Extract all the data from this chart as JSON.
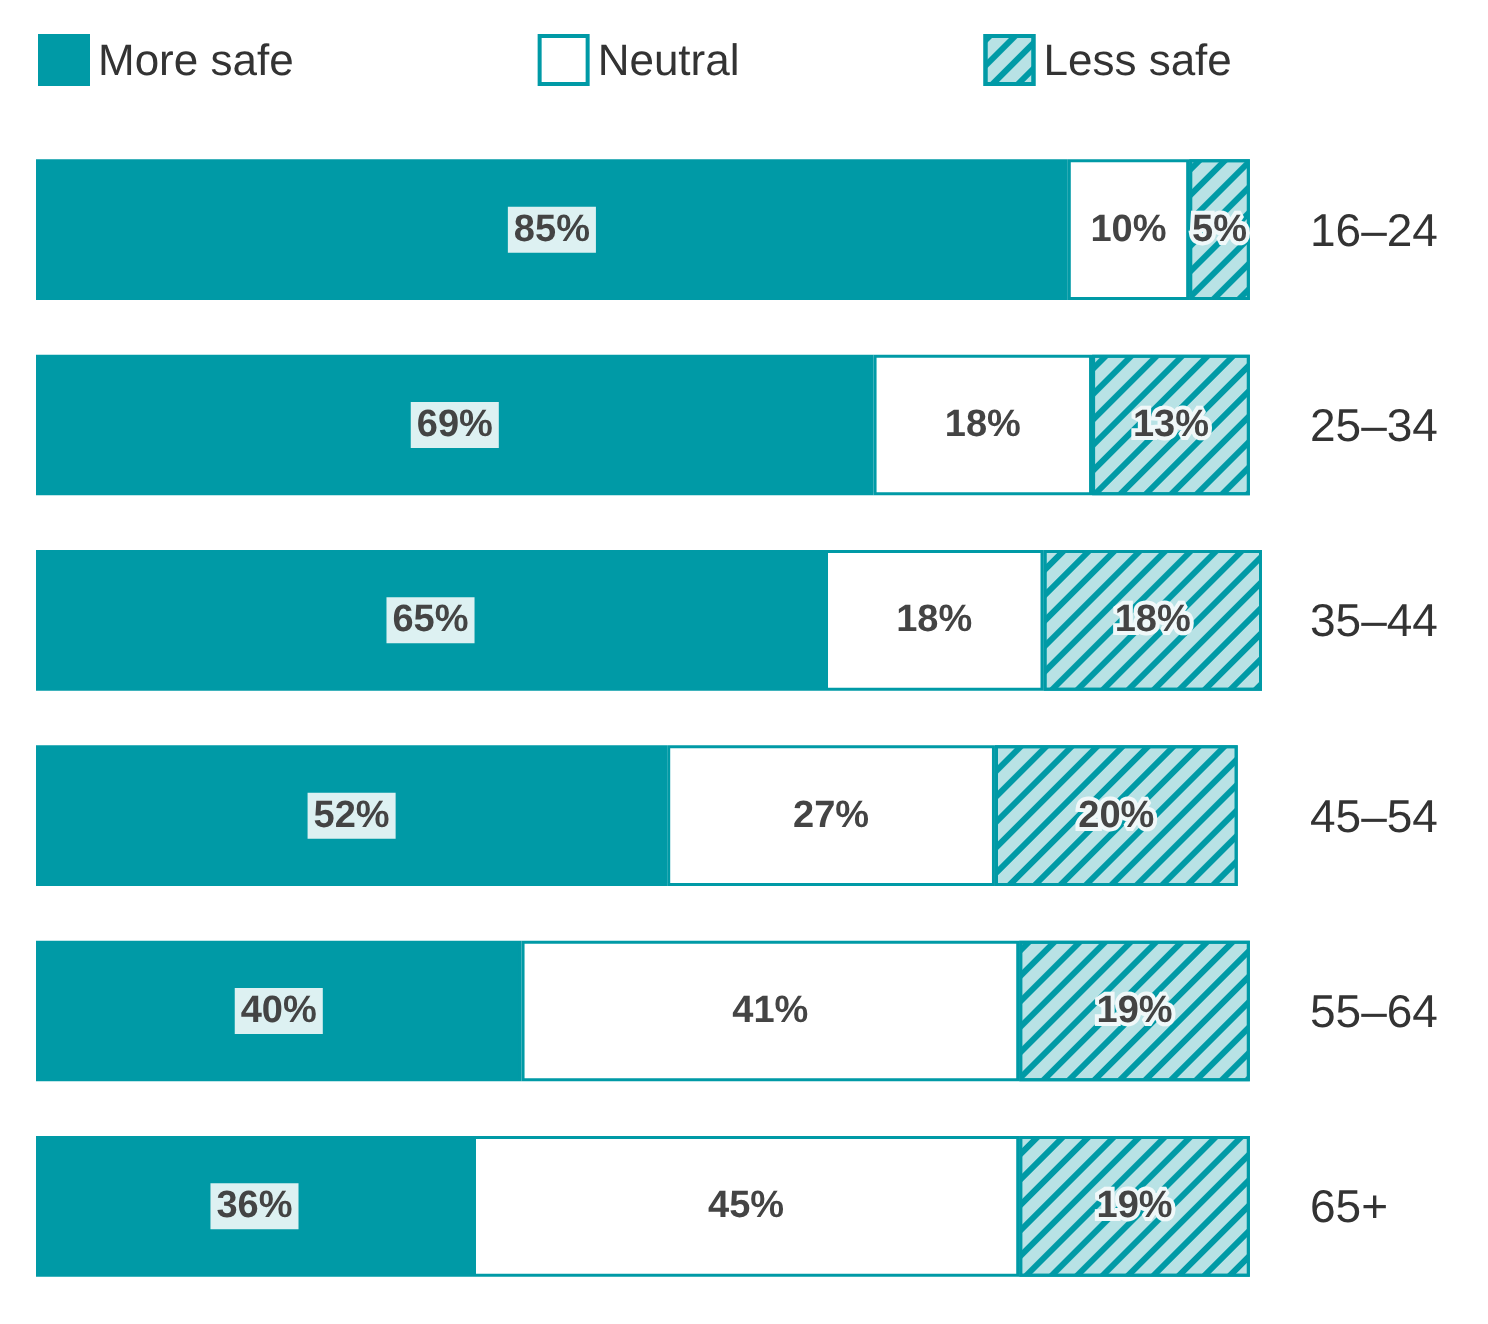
{
  "chart_data": {
    "type": "bar",
    "orientation": "horizontal",
    "stacked": true,
    "legend": "top left",
    "categories": [
      "16–24",
      "25–34",
      "35–44",
      "45–54",
      "55–64",
      "65+"
    ],
    "series": [
      {
        "name": "More safe",
        "color": "#009aa6",
        "values": [
          85,
          69,
          65,
          52,
          40,
          36
        ],
        "value_labels": [
          "85%",
          "69%",
          "65%",
          "52%",
          "40%",
          "36%"
        ]
      },
      {
        "name": "Neutral",
        "color": "#ffffff",
        "values": [
          10,
          18,
          18,
          27,
          41,
          45
        ],
        "value_labels": [
          "10%",
          "18%",
          "18%",
          "27%",
          "41%",
          "45%"
        ]
      },
      {
        "name": "Less safe",
        "color": "#b8e2e5",
        "values": [
          5,
          13,
          18,
          20,
          19,
          19
        ],
        "value_labels": [
          "5%",
          "13%",
          "18%",
          "20%",
          "19%",
          "19%"
        ]
      }
    ]
  }
}
